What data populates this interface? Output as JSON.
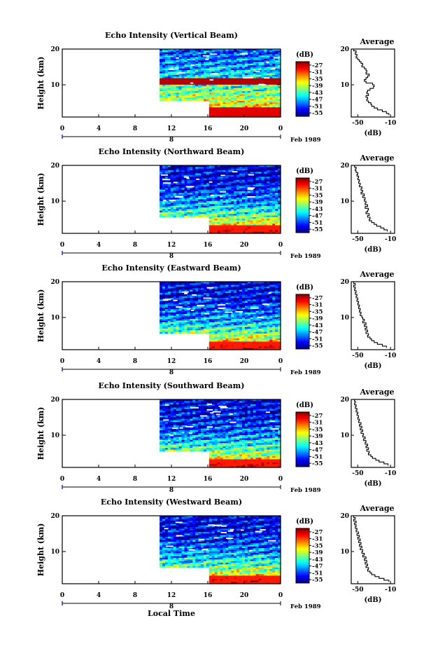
{
  "chart_data": [
    {
      "type": "heatmap",
      "title": "Echo Intensity (Vertical Beam)",
      "ylabel": "Height (km)",
      "x_ticks": [
        "0",
        "4",
        "8",
        "12",
        "16",
        "20",
        "0"
      ],
      "day_tick": "8",
      "month_label": "Feb 1989",
      "y_ticks": [
        "10",
        "20"
      ],
      "ylim": [
        1,
        20
      ],
      "xlim": [
        0,
        24
      ],
      "data_start_hour": 10.7,
      "low_start_hour": 16,
      "colorbar": {
        "unit": "(dB)",
        "ticks": [
          "-27",
          "-31",
          "-35",
          "-39",
          "-43",
          "-47",
          "-51",
          "-55"
        ],
        "range": [
          -57,
          -25
        ]
      },
      "profile": {
        "title": "Average",
        "xlabel": "(dB)",
        "x_ticks": [
          "-50",
          "-10"
        ],
        "y_ticks": [
          "10",
          "20"
        ],
        "xlim": [
          -58,
          -5
        ],
        "points": [
          [
            -52,
            20
          ],
          [
            -55,
            19.5
          ],
          [
            -52,
            19
          ],
          [
            -53,
            18.5
          ],
          [
            -51,
            18
          ],
          [
            -52,
            17.5
          ],
          [
            -50,
            17
          ],
          [
            -48,
            16.5
          ],
          [
            -46,
            16
          ],
          [
            -44,
            15.5
          ],
          [
            -45,
            15
          ],
          [
            -42,
            14.5
          ],
          [
            -40,
            14
          ],
          [
            -39,
            13.5
          ],
          [
            -40,
            13
          ],
          [
            -36,
            12.5
          ],
          [
            -38,
            12
          ],
          [
            -40,
            11.5
          ],
          [
            -42,
            11
          ],
          [
            -40,
            10.5
          ],
          [
            -32,
            10
          ],
          [
            -30,
            9.5
          ],
          [
            -31,
            9
          ],
          [
            -35,
            8.5
          ],
          [
            -38,
            8
          ],
          [
            -39,
            7.5
          ],
          [
            -37,
            7
          ],
          [
            -40,
            6.5
          ],
          [
            -38,
            6
          ],
          [
            -39,
            5.5
          ],
          [
            -37,
            5
          ],
          [
            -34,
            4.5
          ],
          [
            -33,
            4
          ],
          [
            -30,
            3.5
          ],
          [
            -26,
            3
          ],
          [
            -20,
            2.5
          ],
          [
            -15,
            2
          ],
          [
            -12,
            1.5
          ]
        ]
      }
    },
    {
      "type": "heatmap",
      "title": "Echo Intensity (Northward Beam)",
      "ylabel": "Height (km)",
      "x_ticks": [
        "0",
        "4",
        "8",
        "12",
        "16",
        "20",
        "0"
      ],
      "day_tick": "8",
      "month_label": "Feb 1989",
      "y_ticks": [
        "10",
        "20"
      ],
      "ylim": [
        1,
        20
      ],
      "xlim": [
        0,
        24
      ],
      "data_start_hour": 10.7,
      "low_start_hour": 16,
      "colorbar": {
        "unit": "(dB)",
        "ticks": [
          "-27",
          "-31",
          "-35",
          "-39",
          "-43",
          "-47",
          "-51",
          "-55"
        ],
        "range": [
          -57,
          -25
        ]
      },
      "profile": {
        "title": "Average",
        "xlabel": "(dB)",
        "x_ticks": [
          "-50",
          "-10"
        ],
        "y_ticks": [
          "10",
          "20"
        ],
        "xlim": [
          -58,
          -5
        ],
        "points": [
          [
            -53,
            20
          ],
          [
            -54,
            19.5
          ],
          [
            -52,
            19
          ],
          [
            -53,
            18.5
          ],
          [
            -52,
            18
          ],
          [
            -50,
            17.5
          ],
          [
            -51,
            17
          ],
          [
            -49,
            16.5
          ],
          [
            -50,
            16
          ],
          [
            -48,
            15.5
          ],
          [
            -49,
            15
          ],
          [
            -47,
            14.5
          ],
          [
            -48,
            14
          ],
          [
            -45,
            13.5
          ],
          [
            -46,
            13
          ],
          [
            -44,
            12.5
          ],
          [
            -46,
            12
          ],
          [
            -42,
            11.5
          ],
          [
            -44,
            11
          ],
          [
            -41,
            10.5
          ],
          [
            -42,
            10
          ],
          [
            -40,
            9.5
          ],
          [
            -41,
            9
          ],
          [
            -38,
            8.5
          ],
          [
            -41,
            8
          ],
          [
            -37,
            7.5
          ],
          [
            -38,
            7
          ],
          [
            -40,
            6.5
          ],
          [
            -36,
            6
          ],
          [
            -38,
            5.5
          ],
          [
            -35,
            5
          ],
          [
            -36,
            4.5
          ],
          [
            -33,
            4
          ],
          [
            -30,
            3.5
          ],
          [
            -27,
            3
          ],
          [
            -22,
            2.5
          ],
          [
            -18,
            2
          ],
          [
            -14,
            1.5
          ]
        ]
      }
    },
    {
      "type": "heatmap",
      "title": "Echo Intensity (Eastward Beam)",
      "ylabel": "Height (km)",
      "x_ticks": [
        "0",
        "4",
        "8",
        "12",
        "16",
        "20",
        "0"
      ],
      "day_tick": "8",
      "month_label": "Feb 1989",
      "y_ticks": [
        "10",
        "20"
      ],
      "ylim": [
        1,
        20
      ],
      "xlim": [
        0,
        24
      ],
      "data_start_hour": 10.7,
      "low_start_hour": 16,
      "colorbar": {
        "unit": "(dB)",
        "ticks": [
          "-27",
          "-31",
          "-35",
          "-39",
          "-43",
          "-47",
          "-51",
          "-55"
        ],
        "range": [
          -57,
          -25
        ]
      },
      "profile": {
        "title": "Average",
        "xlabel": "(dB)",
        "x_ticks": [
          "-50",
          "-10"
        ],
        "y_ticks": [
          "10",
          "20"
        ],
        "xlim": [
          -58,
          -5
        ],
        "points": [
          [
            -54,
            20
          ],
          [
            -55,
            19.5
          ],
          [
            -53,
            19
          ],
          [
            -55,
            18.5
          ],
          [
            -53,
            18
          ],
          [
            -54,
            17.5
          ],
          [
            -52,
            17
          ],
          [
            -53,
            16.5
          ],
          [
            -51,
            16
          ],
          [
            -52,
            15.5
          ],
          [
            -50,
            15
          ],
          [
            -51,
            14.5
          ],
          [
            -49,
            14
          ],
          [
            -50,
            13.5
          ],
          [
            -48,
            13
          ],
          [
            -49,
            12.5
          ],
          [
            -47,
            12
          ],
          [
            -48,
            11.5
          ],
          [
            -46,
            11
          ],
          [
            -47,
            10.5
          ],
          [
            -45,
            10
          ],
          [
            -44,
            9.5
          ],
          [
            -42,
            9
          ],
          [
            -44,
            8.5
          ],
          [
            -40,
            8
          ],
          [
            -42,
            7.5
          ],
          [
            -39,
            7
          ],
          [
            -41,
            6.5
          ],
          [
            -38,
            6
          ],
          [
            -40,
            5.5
          ],
          [
            -37,
            5
          ],
          [
            -38,
            4.5
          ],
          [
            -35,
            4
          ],
          [
            -33,
            3.5
          ],
          [
            -30,
            3
          ],
          [
            -26,
            2.5
          ],
          [
            -20,
            2
          ],
          [
            -15,
            1.5
          ]
        ]
      }
    },
    {
      "type": "heatmap",
      "title": "Echo Intensity (Southward Beam)",
      "ylabel": "Height (km)",
      "x_ticks": [
        "0",
        "4",
        "8",
        "12",
        "16",
        "20",
        "0"
      ],
      "day_tick": "8",
      "month_label": "Feb 1989",
      "y_ticks": [
        "10",
        "20"
      ],
      "ylim": [
        1,
        20
      ],
      "xlim": [
        0,
        24
      ],
      "data_start_hour": 10.7,
      "low_start_hour": 16,
      "colorbar": {
        "unit": "(dB)",
        "ticks": [
          "-27",
          "-31",
          "-35",
          "-39",
          "-43",
          "-47",
          "-51",
          "-55"
        ],
        "range": [
          -57,
          -25
        ]
      },
      "profile": {
        "title": "Average",
        "xlabel": "(dB)",
        "x_ticks": [
          "-50",
          "-10"
        ],
        "y_ticks": [
          "10",
          "20"
        ],
        "xlim": [
          -58,
          -5
        ],
        "points": [
          [
            -53,
            20
          ],
          [
            -54,
            19.5
          ],
          [
            -53,
            19
          ],
          [
            -54,
            18.5
          ],
          [
            -52,
            18
          ],
          [
            -53,
            17.5
          ],
          [
            -51,
            17
          ],
          [
            -52,
            16.5
          ],
          [
            -50,
            16
          ],
          [
            -51,
            15.5
          ],
          [
            -49,
            15
          ],
          [
            -50,
            14.5
          ],
          [
            -48,
            14
          ],
          [
            -49,
            13.5
          ],
          [
            -46,
            13
          ],
          [
            -48,
            12.5
          ],
          [
            -45,
            12
          ],
          [
            -47,
            11.5
          ],
          [
            -44,
            11
          ],
          [
            -46,
            10.5
          ],
          [
            -43,
            10
          ],
          [
            -44,
            9.5
          ],
          [
            -41,
            9
          ],
          [
            -43,
            8.5
          ],
          [
            -40,
            8
          ],
          [
            -41,
            7.5
          ],
          [
            -38,
            7
          ],
          [
            -40,
            6.5
          ],
          [
            -37,
            6
          ],
          [
            -39,
            5.5
          ],
          [
            -36,
            5
          ],
          [
            -37,
            4.5
          ],
          [
            -34,
            4
          ],
          [
            -32,
            3.5
          ],
          [
            -28,
            3
          ],
          [
            -24,
            2.5
          ],
          [
            -18,
            2
          ],
          [
            -13,
            1.5
          ]
        ]
      }
    },
    {
      "type": "heatmap",
      "title": "Echo Intensity (Westward Beam)",
      "ylabel": "Height (km)",
      "x_ticks": [
        "0",
        "4",
        "8",
        "12",
        "16",
        "20",
        "0"
      ],
      "day_tick": "8",
      "month_label": "Feb 1989",
      "y_ticks": [
        "10",
        "20"
      ],
      "ylim": [
        1,
        20
      ],
      "xlim": [
        0,
        24
      ],
      "data_start_hour": 10.7,
      "low_start_hour": 16,
      "colorbar": {
        "unit": "(dB)",
        "ticks": [
          "-27",
          "-31",
          "-35",
          "-39",
          "-43",
          "-47",
          "-51",
          "-55"
        ],
        "range": [
          -57,
          -25
        ]
      },
      "profile": {
        "title": "Average",
        "xlabel": "(dB)",
        "x_ticks": [
          "-50",
          "-10"
        ],
        "y_ticks": [
          "10",
          "20"
        ],
        "xlim": [
          -58,
          -5
        ],
        "points": [
          [
            -54,
            20
          ],
          [
            -55,
            19.5
          ],
          [
            -53,
            19
          ],
          [
            -55,
            18.5
          ],
          [
            -52,
            18
          ],
          [
            -54,
            17.5
          ],
          [
            -52,
            17
          ],
          [
            -53,
            16.5
          ],
          [
            -51,
            16
          ],
          [
            -52,
            15.5
          ],
          [
            -49,
            15
          ],
          [
            -51,
            14.5
          ],
          [
            -48,
            14
          ],
          [
            -50,
            13.5
          ],
          [
            -47,
            13
          ],
          [
            -49,
            12.5
          ],
          [
            -46,
            12
          ],
          [
            -48,
            11.5
          ],
          [
            -45,
            11
          ],
          [
            -47,
            10.5
          ],
          [
            -44,
            10
          ],
          [
            -45,
            9.5
          ],
          [
            -42,
            9
          ],
          [
            -44,
            8.5
          ],
          [
            -40,
            8
          ],
          [
            -42,
            7.5
          ],
          [
            -39,
            7
          ],
          [
            -41,
            6.5
          ],
          [
            -38,
            6
          ],
          [
            -40,
            5.5
          ],
          [
            -37,
            5
          ],
          [
            -38,
            4.5
          ],
          [
            -35,
            4
          ],
          [
            -33,
            3.5
          ],
          [
            -29,
            3
          ],
          [
            -24,
            2.5
          ],
          [
            -18,
            2
          ],
          [
            -12,
            1.5
          ]
        ]
      }
    }
  ],
  "shared": {
    "xlabel": "Local Time"
  }
}
